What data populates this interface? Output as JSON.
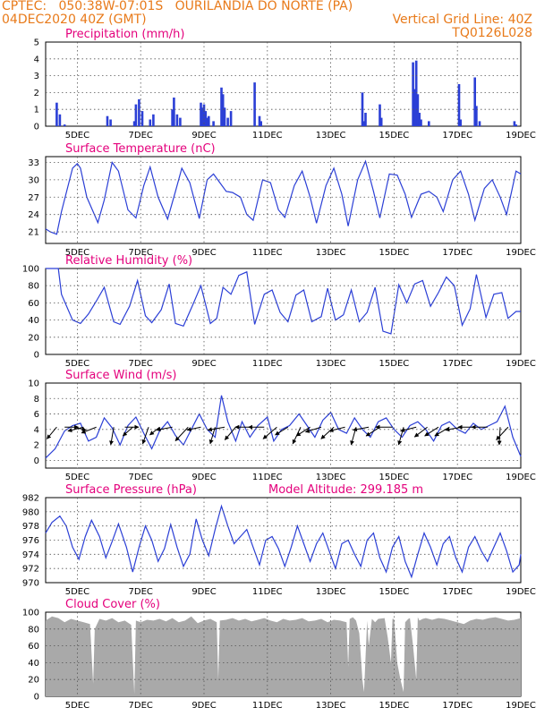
{
  "header": {
    "line1": "CPTEC:   050:38W-07:01S   OURILANDIA DO NORTE (PA)",
    "line2": "04DEC2020 40Z (GMT)",
    "grid_note": "Vertical Grid Line: 40Z",
    "model_id": "TQ0126L028",
    "colors": {
      "header": "#e87a1a",
      "titles": "#e4007c",
      "series": "#2b3fd6",
      "cloud": "#a9a9a9"
    }
  },
  "x_axis": {
    "tick_labels": [
      "5DEC",
      "7DEC",
      "9DEC",
      "11DEC",
      "13DEC",
      "15DEC",
      "17DEC",
      "19DEC"
    ],
    "tick_days": [
      5,
      7,
      9,
      11,
      13,
      15,
      17,
      19
    ],
    "range_days": [
      4.0,
      19.0
    ],
    "grid": "dotted"
  },
  "chart_data": [
    {
      "type": "bar",
      "title": "Precipitation (mm/h)",
      "ylim": [
        0,
        5
      ],
      "yticks": [
        0,
        1,
        2,
        3,
        4,
        5
      ],
      "x": [
        4.35,
        4.45,
        4.6,
        5.95,
        6.05,
        6.8,
        6.85,
        6.95,
        7.05,
        7.3,
        7.4,
        8.0,
        8.05,
        8.15,
        8.25,
        8.9,
        8.95,
        9.0,
        9.05,
        9.1,
        9.15,
        9.3,
        9.55,
        9.6,
        9.65,
        9.75,
        9.85,
        10.6,
        10.75,
        10.8,
        14.0,
        14.05,
        14.1,
        14.55,
        14.6,
        15.6,
        15.65,
        15.7,
        15.75,
        15.8,
        15.85,
        16.1,
        17.05,
        17.1,
        17.55,
        17.6,
        17.7,
        18.8,
        18.85
      ],
      "values": [
        1.4,
        0.7,
        0.1,
        0.6,
        0.4,
        0.3,
        1.3,
        1.6,
        0.9,
        0.4,
        0.7,
        1.0,
        1.7,
        0.7,
        0.5,
        1.4,
        1.1,
        1.3,
        0.9,
        0.5,
        0.6,
        0.3,
        2.3,
        1.9,
        1.1,
        0.5,
        0.9,
        2.6,
        0.6,
        0.3,
        2.0,
        0.3,
        0.8,
        1.3,
        0.5,
        3.8,
        2.2,
        3.9,
        1.9,
        0.8,
        0.4,
        0.3,
        2.5,
        0.4,
        2.9,
        1.2,
        0.3,
        0.3,
        0.1
      ]
    },
    {
      "type": "line",
      "title": "Surface Temperature (nC)",
      "ylim": [
        19,
        34
      ],
      "yticks": [
        21,
        24,
        27,
        30,
        33
      ],
      "x": [
        4.0,
        4.15,
        4.35,
        4.5,
        4.85,
        5.0,
        5.1,
        5.3,
        5.65,
        5.85,
        6.1,
        6.3,
        6.6,
        6.85,
        7.1,
        7.3,
        7.55,
        7.85,
        8.1,
        8.3,
        8.55,
        8.85,
        9.1,
        9.3,
        9.5,
        9.7,
        9.9,
        10.15,
        10.35,
        10.55,
        10.85,
        11.1,
        11.35,
        11.55,
        11.85,
        12.1,
        12.35,
        12.55,
        12.85,
        13.1,
        13.35,
        13.55,
        13.85,
        14.1,
        14.35,
        14.55,
        14.85,
        15.1,
        15.35,
        15.55,
        15.85,
        16.1,
        16.35,
        16.55,
        16.85,
        17.1,
        17.35,
        17.55,
        17.85,
        18.1,
        18.35,
        18.55,
        18.85,
        19.0
      ],
      "values": [
        21.5,
        21.0,
        20.6,
        24.5,
        32.0,
        32.8,
        32.0,
        27.0,
        22.6,
        26.5,
        33.0,
        31.5,
        24.8,
        23.4,
        29.0,
        32.2,
        27.0,
        23.2,
        28.0,
        32.0,
        29.5,
        23.3,
        30.0,
        31.0,
        29.5,
        28.0,
        27.8,
        27.0,
        24.0,
        23.0,
        30.0,
        29.5,
        24.8,
        23.5,
        29.0,
        31.5,
        27.0,
        22.5,
        29.0,
        32.0,
        27.5,
        22.0,
        30.0,
        33.2,
        28.0,
        23.4,
        31.0,
        30.8,
        27.5,
        23.5,
        27.5,
        28.0,
        27.0,
        24.5,
        30.0,
        31.5,
        27.5,
        23.0,
        28.5,
        30.0,
        27.0,
        24.0,
        31.5,
        31.0
      ]
    },
    {
      "type": "line",
      "title": "Relative Humidity (%)",
      "ylim": [
        0,
        100
      ],
      "yticks": [
        0,
        20,
        40,
        60,
        80,
        100
      ],
      "x": [
        4.0,
        4.4,
        4.5,
        4.85,
        5.1,
        5.35,
        5.6,
        5.85,
        6.15,
        6.35,
        6.65,
        6.9,
        7.15,
        7.35,
        7.65,
        7.9,
        8.1,
        8.35,
        8.65,
        8.9,
        9.2,
        9.4,
        9.6,
        9.85,
        10.1,
        10.35,
        10.6,
        10.9,
        11.15,
        11.4,
        11.65,
        11.9,
        12.15,
        12.4,
        12.7,
        12.9,
        13.15,
        13.4,
        13.65,
        13.9,
        14.15,
        14.4,
        14.65,
        14.9,
        15.15,
        15.4,
        15.65,
        15.9,
        16.15,
        16.4,
        16.65,
        16.9,
        17.15,
        17.4,
        17.6,
        17.9,
        18.15,
        18.4,
        18.6,
        18.85,
        19.0
      ],
      "values": [
        100,
        100,
        70,
        40,
        36,
        47,
        62,
        78,
        38,
        35,
        56,
        86,
        45,
        37,
        52,
        82,
        36,
        33,
        58,
        80,
        36,
        42,
        78,
        70,
        92,
        96,
        35,
        70,
        75,
        49,
        38,
        69,
        75,
        38,
        44,
        77,
        40,
        46,
        75,
        38,
        49,
        78,
        27,
        24,
        81,
        60,
        82,
        86,
        56,
        72,
        90,
        80,
        34,
        53,
        93,
        43,
        70,
        72,
        42,
        50,
        50
      ]
    },
    {
      "type": "line",
      "title": "Surface Wind (m/s)",
      "ylim": [
        -1,
        10
      ],
      "yticks": [
        0,
        2,
        4,
        6,
        8,
        10
      ],
      "x": [
        4.0,
        4.3,
        4.6,
        4.85,
        5.1,
        5.35,
        5.6,
        5.85,
        6.1,
        6.35,
        6.6,
        6.85,
        7.1,
        7.35,
        7.6,
        7.85,
        8.1,
        8.35,
        8.6,
        8.85,
        9.1,
        9.35,
        9.55,
        9.75,
        10.0,
        10.2,
        10.45,
        10.7,
        11.0,
        11.2,
        11.45,
        11.7,
        12.0,
        12.25,
        12.5,
        12.75,
        13.0,
        13.25,
        13.5,
        13.75,
        14.0,
        14.25,
        14.5,
        14.75,
        15.0,
        15.25,
        15.5,
        15.75,
        16.0,
        16.25,
        16.5,
        16.75,
        17.0,
        17.25,
        17.5,
        17.75,
        18.0,
        18.25,
        18.5,
        18.75,
        19.0
      ],
      "values": [
        0.3,
        1.5,
        3.8,
        4.5,
        4.8,
        2.5,
        3.0,
        5.5,
        4.2,
        2.0,
        4.5,
        5.6,
        3.5,
        1.5,
        3.8,
        5.0,
        3.2,
        2.0,
        4.0,
        6.0,
        4.0,
        3.0,
        8.4,
        5.0,
        2.5,
        5.0,
        3.0,
        4.5,
        5.6,
        2.5,
        4.0,
        4.5,
        6.0,
        4.5,
        3.0,
        5.2,
        6.2,
        4.0,
        3.5,
        5.5,
        4.0,
        3.0,
        5.0,
        5.5,
        4.0,
        3.0,
        4.5,
        5.0,
        4.0,
        2.5,
        4.5,
        5.0,
        4.0,
        3.5,
        4.8,
        4.0,
        4.5,
        5.0,
        7.0,
        3.0,
        0.5
      ],
      "vectors": [
        {
          "x": 4.35,
          "u": -1.0,
          "v": -1.2
        },
        {
          "x": 4.6,
          "u": 1.4,
          "v": 0.0
        },
        {
          "x": 4.9,
          "u": 1.2,
          "v": -0.3
        },
        {
          "x": 5.2,
          "u": -1.6,
          "v": -0.4
        },
        {
          "x": 5.6,
          "u": -1.5,
          "v": -0.6
        },
        {
          "x": 6.15,
          "u": -0.3,
          "v": -1.8
        },
        {
          "x": 6.5,
          "u": 1.4,
          "v": 0.0
        },
        {
          "x": 6.75,
          "u": -1.0,
          "v": -0.9
        },
        {
          "x": 7.25,
          "u": -0.6,
          "v": -1.7
        },
        {
          "x": 7.6,
          "u": -1.0,
          "v": -0.8
        },
        {
          "x": 8.0,
          "u": -1.6,
          "v": -0.3
        },
        {
          "x": 8.5,
          "u": -1.3,
          "v": -1.4
        },
        {
          "x": 8.9,
          "u": -1.4,
          "v": -0.3
        },
        {
          "x": 9.35,
          "u": -0.5,
          "v": -1.7
        },
        {
          "x": 9.65,
          "u": -1.7,
          "v": -0.3
        },
        {
          "x": 10.0,
          "u": -1.1,
          "v": -1.3
        },
        {
          "x": 10.45,
          "u": -1.5,
          "v": 0.0
        },
        {
          "x": 10.9,
          "u": -1.6,
          "v": 0.0
        },
        {
          "x": 11.3,
          "u": -1.4,
          "v": -1.2
        },
        {
          "x": 11.65,
          "u": -1.3,
          "v": -0.8
        },
        {
          "x": 12.05,
          "u": -0.8,
          "v": -1.7
        },
        {
          "x": 12.35,
          "u": -1.4,
          "v": -0.9
        },
        {
          "x": 12.7,
          "u": -1.6,
          "v": -0.5
        },
        {
          "x": 13.1,
          "u": -1.3,
          "v": -1.2
        },
        {
          "x": 13.45,
          "u": -1.6,
          "v": -0.4
        },
        {
          "x": 13.8,
          "u": -0.5,
          "v": -1.8
        },
        {
          "x": 14.2,
          "u": -1.6,
          "v": -0.3
        },
        {
          "x": 14.55,
          "u": -1.4,
          "v": -0.9
        },
        {
          "x": 14.95,
          "u": -1.7,
          "v": 0.0
        },
        {
          "x": 15.3,
          "u": -0.5,
          "v": -1.8
        },
        {
          "x": 15.7,
          "u": -1.6,
          "v": -0.4
        },
        {
          "x": 16.05,
          "u": -1.3,
          "v": -1.0
        },
        {
          "x": 16.4,
          "u": -1.4,
          "v": -0.9
        },
        {
          "x": 16.75,
          "u": -1.5,
          "v": -0.9
        },
        {
          "x": 17.15,
          "u": -1.7,
          "v": -0.3
        },
        {
          "x": 17.55,
          "u": -1.7,
          "v": 0.0
        },
        {
          "x": 17.95,
          "u": -1.6,
          "v": 0.0
        },
        {
          "x": 18.35,
          "u": -0.1,
          "v": -1.8
        },
        {
          "x": 18.6,
          "u": -1.2,
          "v": -1.3
        }
      ]
    },
    {
      "type": "line",
      "title": "Surface Pressure (hPa)",
      "annotation": "Model Altitude: 299.185 m",
      "ylim": [
        970,
        982
      ],
      "yticks": [
        970,
        972,
        974,
        976,
        978,
        980,
        982
      ],
      "x": [
        4.0,
        4.2,
        4.45,
        4.65,
        4.85,
        5.05,
        5.25,
        5.45,
        5.7,
        5.9,
        6.1,
        6.3,
        6.55,
        6.75,
        6.95,
        7.15,
        7.35,
        7.55,
        7.75,
        7.95,
        8.15,
        8.35,
        8.55,
        8.75,
        8.95,
        9.15,
        9.35,
        9.55,
        9.75,
        9.95,
        10.15,
        10.35,
        10.55,
        10.75,
        10.95,
        11.15,
        11.35,
        11.55,
        11.75,
        11.95,
        12.15,
        12.35,
        12.55,
        12.75,
        12.95,
        13.15,
        13.35,
        13.55,
        13.75,
        13.95,
        14.15,
        14.35,
        14.55,
        14.75,
        14.95,
        15.15,
        15.35,
        15.55,
        15.75,
        15.95,
        16.15,
        16.35,
        16.55,
        16.75,
        16.95,
        17.15,
        17.35,
        17.55,
        17.75,
        17.95,
        18.15,
        18.35,
        18.55,
        18.75,
        18.95,
        19.0
      ],
      "values": [
        977.0,
        978.5,
        979.4,
        978.0,
        975.0,
        973.3,
        976.5,
        978.8,
        976.5,
        973.5,
        975.8,
        978.3,
        975.0,
        971.5,
        975.0,
        978.0,
        976.0,
        973.0,
        974.8,
        978.2,
        975.0,
        972.3,
        974.0,
        979.0,
        976.0,
        973.8,
        977.5,
        980.8,
        978.0,
        975.5,
        976.5,
        977.5,
        975.0,
        972.5,
        976.0,
        976.5,
        974.8,
        972.3,
        975.0,
        978.0,
        975.5,
        973.0,
        975.5,
        977.0,
        974.5,
        972.0,
        975.5,
        976.0,
        974.0,
        972.3,
        976.0,
        977.0,
        973.5,
        971.5,
        975.0,
        976.5,
        973.0,
        970.8,
        974.0,
        977.0,
        975.0,
        972.5,
        975.5,
        976.5,
        973.5,
        971.5,
        975.0,
        976.5,
        974.5,
        973.0,
        975.0,
        977.0,
        974.5,
        971.5,
        972.5,
        974.0
      ]
    },
    {
      "type": "area",
      "title": "Cloud Cover (%)",
      "ylim": [
        0,
        100
      ],
      "yticks": [
        0,
        20,
        40,
        60,
        80,
        100
      ],
      "x": [
        4.0,
        4.2,
        4.4,
        4.6,
        4.8,
        5.0,
        5.2,
        5.4,
        5.5,
        5.55,
        5.7,
        5.9,
        6.1,
        6.3,
        6.5,
        6.7,
        6.8,
        6.85,
        7.0,
        7.2,
        7.4,
        7.6,
        7.8,
        8.0,
        8.2,
        8.4,
        8.6,
        8.8,
        9.0,
        9.2,
        9.4,
        9.45,
        9.5,
        9.7,
        9.9,
        10.1,
        10.3,
        10.5,
        10.7,
        10.9,
        11.1,
        11.3,
        11.5,
        11.7,
        11.9,
        12.1,
        12.3,
        12.5,
        12.7,
        12.9,
        13.1,
        13.3,
        13.5,
        13.55,
        13.6,
        13.7,
        13.8,
        13.9,
        14.0,
        14.05,
        14.15,
        14.2,
        14.3,
        14.4,
        14.5,
        14.7,
        14.8,
        14.9,
        14.95,
        15.0,
        15.1,
        15.2,
        15.3,
        15.35,
        15.45,
        15.5,
        15.6,
        15.7,
        15.75,
        15.8,
        15.9,
        16.0,
        16.2,
        16.4,
        16.6,
        16.8,
        17.0,
        17.2,
        17.4,
        17.6,
        17.8,
        18.0,
        18.2,
        18.4,
        18.6,
        18.8,
        19.0
      ],
      "values": [
        90,
        95,
        93,
        88,
        92,
        90,
        88,
        86,
        15,
        80,
        92,
        90,
        93,
        88,
        90,
        85,
        3,
        90,
        88,
        91,
        90,
        92,
        89,
        93,
        88,
        90,
        95,
        87,
        90,
        92,
        88,
        20,
        90,
        91,
        93,
        90,
        92,
        89,
        91,
        93,
        90,
        88,
        92,
        90,
        91,
        93,
        89,
        90,
        92,
        88,
        91,
        90,
        88,
        35,
        92,
        94,
        90,
        75,
        20,
        5,
        90,
        60,
        92,
        88,
        92,
        93,
        70,
        40,
        92,
        92,
        40,
        20,
        5,
        88,
        92,
        93,
        60,
        20,
        94,
        90,
        92,
        93,
        91,
        93,
        92,
        90,
        88,
        86,
        90,
        92,
        91,
        93,
        94,
        92,
        90,
        91,
        93
      ]
    }
  ]
}
